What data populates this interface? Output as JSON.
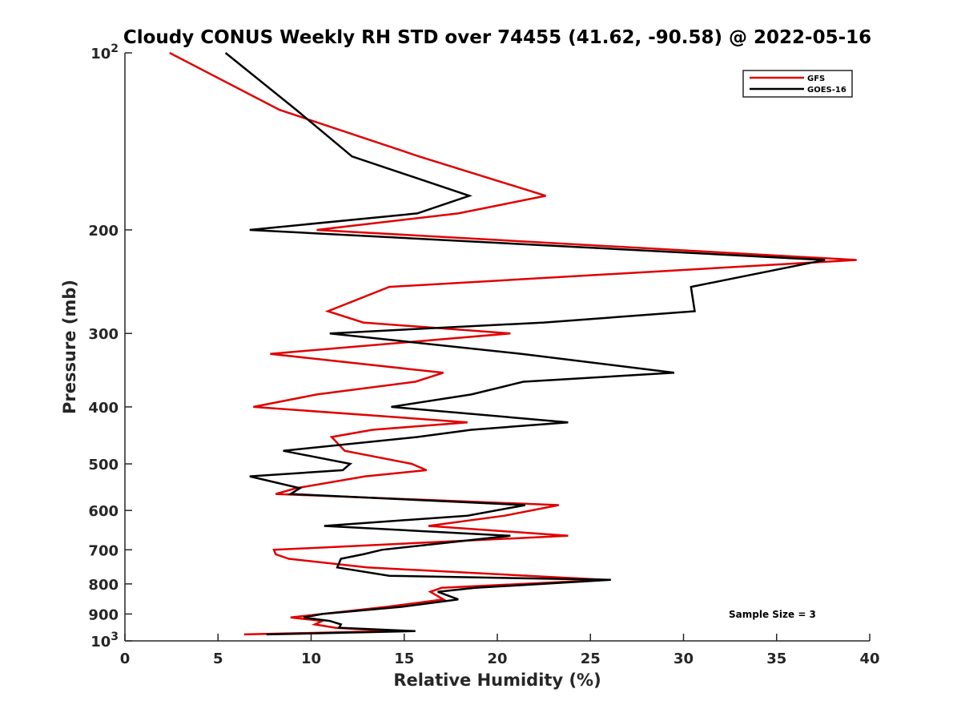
{
  "chart_data": {
    "type": "line",
    "title": "Cloudy CONUS Weekly RH STD over 74455 (41.62, -90.58) @ 2022-05-16",
    "xlabel": "Relative Humidity (%)",
    "ylabel": "Pressure (mb)",
    "xlim": [
      0,
      40
    ],
    "ylim": [
      100,
      1000
    ],
    "y_scale": "log",
    "y_reversed": true,
    "grid": false,
    "legend_position": "top-right",
    "x_ticks": [
      "0",
      "5",
      "10",
      "15",
      "20",
      "25",
      "30",
      "35",
      "40"
    ],
    "x_tick_values": [
      0,
      5,
      10,
      15,
      20,
      25,
      30,
      35,
      40
    ],
    "y_ticks": [
      {
        "value": 100,
        "base": "10",
        "exp": "2"
      },
      {
        "value": 200,
        "label": "200"
      },
      {
        "value": 300,
        "label": "300"
      },
      {
        "value": 400,
        "label": "400"
      },
      {
        "value": 500,
        "label": "500"
      },
      {
        "value": 600,
        "label": "600"
      },
      {
        "value": 700,
        "label": "700"
      },
      {
        "value": 800,
        "label": "800"
      },
      {
        "value": 900,
        "label": "900"
      },
      {
        "value": 1000,
        "base": "10",
        "exp": "3"
      }
    ],
    "annotation": "Sample Size = 3",
    "series": [
      {
        "name": "GFS",
        "color": "#e00000",
        "points": [
          [
            2.4,
            100
          ],
          [
            8.3,
            125
          ],
          [
            15.8,
            150
          ],
          [
            22.6,
            175
          ],
          [
            17.9,
            187.5
          ],
          [
            10.3,
            200
          ],
          [
            39.3,
            225
          ],
          [
            14.2,
            250
          ],
          [
            10.9,
            275
          ],
          [
            12.8,
            287.5
          ],
          [
            20.7,
            300
          ],
          [
            7.8,
            325
          ],
          [
            17.1,
            350
          ],
          [
            15.6,
            362.5
          ],
          [
            10.3,
            381
          ],
          [
            6.9,
            400
          ],
          [
            18.4,
            425
          ],
          [
            13.3,
            437.5
          ],
          [
            11.1,
            450
          ],
          [
            11.8,
            475
          ],
          [
            15.4,
            500
          ],
          [
            16.2,
            512.5
          ],
          [
            12.9,
            525
          ],
          [
            9.2,
            550
          ],
          [
            8.1,
            562.5
          ],
          [
            23.3,
            587.5
          ],
          [
            20.4,
            612.5
          ],
          [
            16.3,
            637.5
          ],
          [
            23.8,
            662.5
          ],
          [
            8.0,
            700
          ],
          [
            8.1,
            712.5
          ],
          [
            8.8,
            725
          ],
          [
            13.0,
            750
          ],
          [
            25.8,
            787.5
          ],
          [
            17.0,
            812.5
          ],
          [
            16.4,
            825
          ],
          [
            17.1,
            850
          ],
          [
            14.1,
            875
          ],
          [
            8.9,
            912.5
          ],
          [
            10.6,
            925
          ],
          [
            10.2,
            937.5
          ],
          [
            11.3,
            950
          ],
          [
            14.3,
            962.5
          ],
          [
            6.4,
            975
          ]
        ]
      },
      {
        "name": "GOES-16",
        "color": "#000000",
        "points": [
          [
            5.4,
            100
          ],
          [
            9.2,
            125
          ],
          [
            12.2,
            150
          ],
          [
            18.5,
            175
          ],
          [
            15.7,
            187.5
          ],
          [
            6.7,
            200
          ],
          [
            37.6,
            225
          ],
          [
            30.4,
            250
          ],
          [
            30.6,
            275
          ],
          [
            22.5,
            287.5
          ],
          [
            11.0,
            300
          ],
          [
            21.3,
            325
          ],
          [
            29.5,
            350
          ],
          [
            21.4,
            362.5
          ],
          [
            18.6,
            381
          ],
          [
            14.3,
            400
          ],
          [
            23.8,
            425
          ],
          [
            18.6,
            437.5
          ],
          [
            15.7,
            450
          ],
          [
            8.5,
            475
          ],
          [
            12.1,
            500
          ],
          [
            11.7,
            512.5
          ],
          [
            6.7,
            525
          ],
          [
            9.4,
            550
          ],
          [
            8.9,
            562.5
          ],
          [
            21.5,
            587.5
          ],
          [
            18.4,
            612.5
          ],
          [
            10.7,
            637.5
          ],
          [
            20.7,
            662.5
          ],
          [
            13.8,
            700
          ],
          [
            12.8,
            712.5
          ],
          [
            11.6,
            725
          ],
          [
            11.4,
            750
          ],
          [
            14.2,
            775
          ],
          [
            26.1,
            787.5
          ],
          [
            18.8,
            812.5
          ],
          [
            16.8,
            825
          ],
          [
            17.9,
            850
          ],
          [
            14.9,
            875
          ],
          [
            10.6,
            900
          ],
          [
            9.6,
            912.5
          ],
          [
            11.0,
            925
          ],
          [
            11.6,
            937.5
          ],
          [
            11.5,
            950
          ],
          [
            15.6,
            962.5
          ],
          [
            7.6,
            975
          ]
        ]
      }
    ]
  }
}
